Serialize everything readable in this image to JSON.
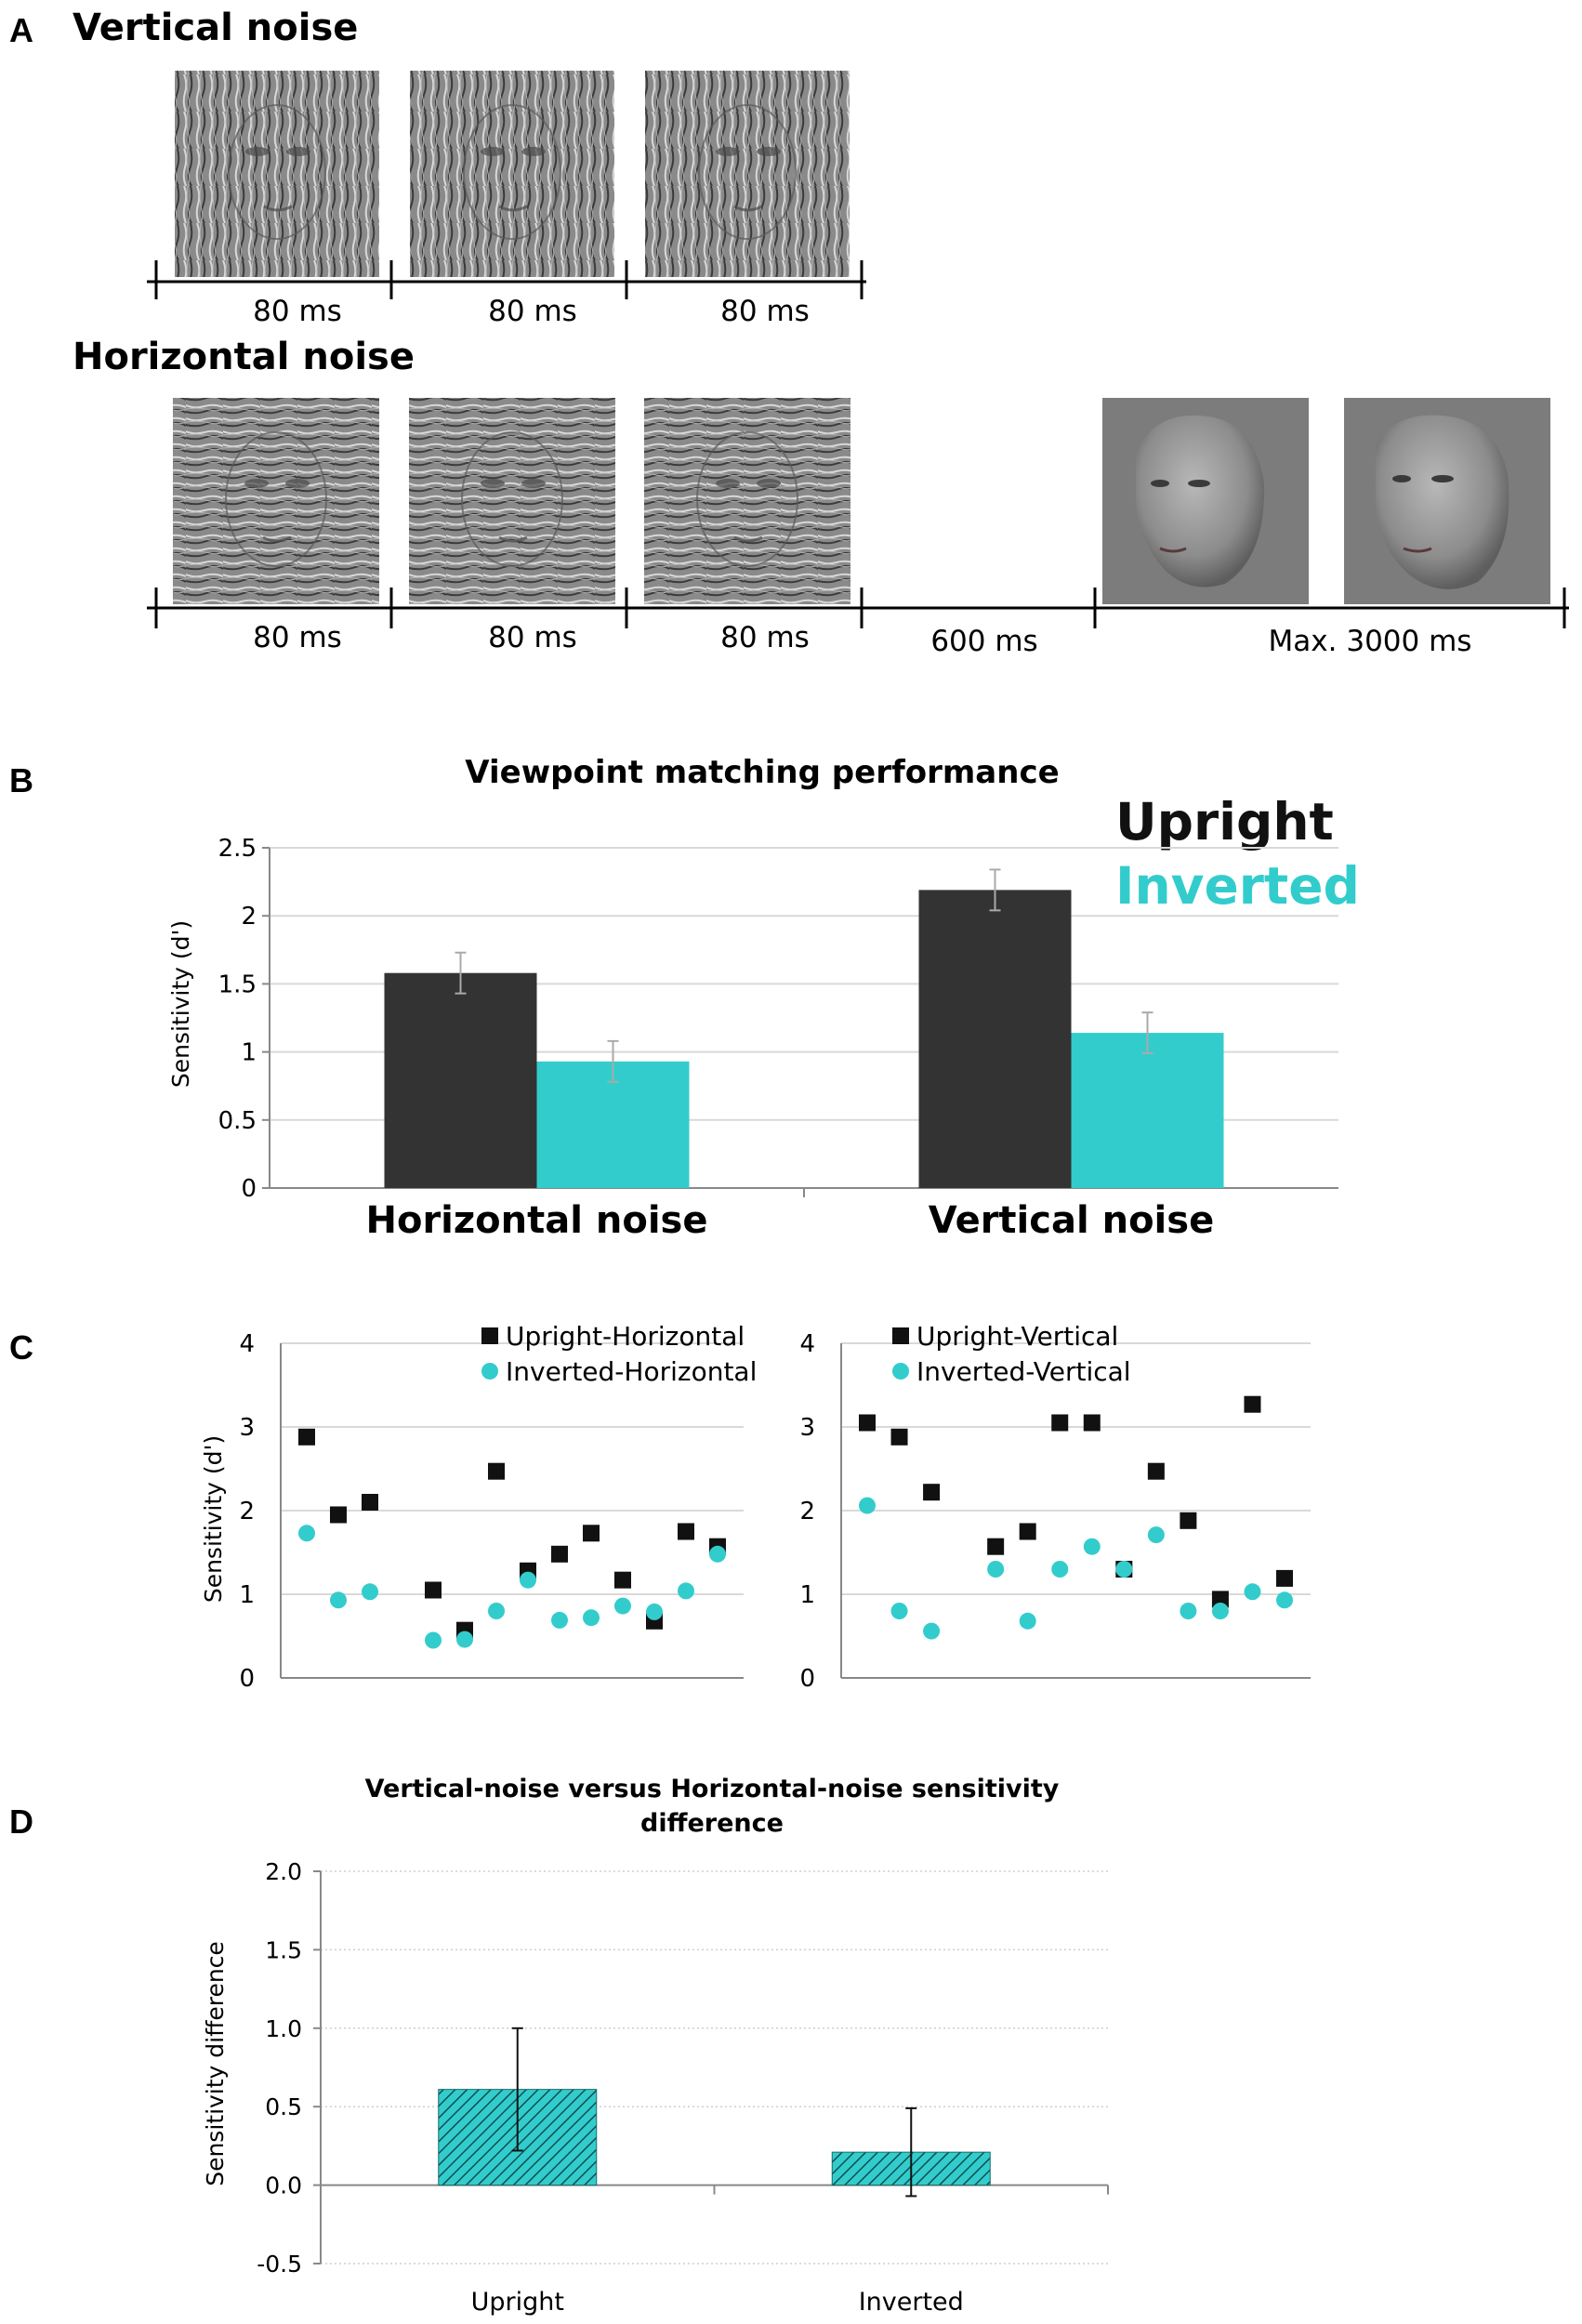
{
  "panel_labels": {
    "a": "A",
    "b": "B",
    "c": "C",
    "d": "D"
  },
  "colors": {
    "upright": "#333333",
    "inverted": "#33cccc",
    "axis": "#888888",
    "grid": "#d9d9d9",
    "ink": "#111111"
  },
  "panel_a": {
    "vertical_title": "Vertical noise",
    "horizontal_title": "Horizontal noise",
    "vertical_times": [
      "80 ms",
      "80 ms",
      "80 ms"
    ],
    "horizontal_times": [
      "80 ms",
      "80 ms",
      "80 ms",
      "600 ms",
      "Max. 3000 ms"
    ],
    "stimulus_icons": [
      "vertical-noise-face-image",
      "horizontal-noise-face-image",
      "rotated-face-photo"
    ]
  },
  "chart_data": [
    {
      "id": "B",
      "type": "bar",
      "title": "Viewpoint matching performance",
      "ylabel": "Sensitivity (d')",
      "xlabel": "",
      "ylim": [
        0,
        2.5
      ],
      "yticks": [
        "0",
        "0.5",
        "1",
        "1.5",
        "2",
        "2.5"
      ],
      "categories": [
        "Horizontal noise",
        "Vertical noise"
      ],
      "legend": [
        "Upright",
        "Inverted"
      ],
      "series": [
        {
          "name": "Upright",
          "color": "#333333",
          "values": [
            1.58,
            2.19
          ],
          "errors": [
            0.15,
            0.15
          ]
        },
        {
          "name": "Inverted",
          "color": "#33cccc",
          "values": [
            0.93,
            1.14
          ],
          "errors": [
            0.15,
            0.15
          ]
        }
      ]
    },
    {
      "id": "C-left",
      "type": "scatter",
      "ylabel": "Sensitivity (d')",
      "ylim": [
        0,
        4
      ],
      "yticks": [
        "0",
        "1",
        "2",
        "3",
        "4"
      ],
      "x": [
        1,
        2,
        3,
        4,
        5,
        6,
        7,
        8,
        9,
        10,
        11,
        12,
        13,
        14
      ],
      "series": [
        {
          "name": "Upright-Horizontal",
          "marker": "square",
          "color": "#111111",
          "values": [
            2.88,
            1.95,
            2.1,
            1.05,
            0.57,
            2.47,
            1.28,
            1.48,
            1.73,
            1.17,
            0.68,
            1.75,
            1.57
          ],
          "x": [
            1,
            2,
            3,
            5,
            6,
            7,
            8,
            9,
            10,
            11,
            12,
            13,
            14
          ]
        },
        {
          "name": "Inverted-Horizontal",
          "marker": "circle",
          "color": "#33cccc",
          "values": [
            1.73,
            0.93,
            1.03,
            0.45,
            0.46,
            0.8,
            1.17,
            0.69,
            0.72,
            0.86,
            0.79,
            1.04,
            1.48
          ],
          "x": [
            1,
            2,
            3,
            5,
            6,
            7,
            8,
            9,
            10,
            11,
            12,
            13,
            14
          ]
        }
      ]
    },
    {
      "id": "C-right",
      "type": "scatter",
      "ylabel": "",
      "ylim": [
        0,
        4
      ],
      "yticks": [
        "0",
        "1",
        "2",
        "3",
        "4"
      ],
      "x": [
        1,
        2,
        3,
        4,
        5,
        6,
        7,
        8,
        9,
        10,
        11,
        12,
        13,
        14
      ],
      "series": [
        {
          "name": "Upright-Vertical",
          "marker": "square",
          "color": "#111111",
          "values": [
            3.05,
            2.88,
            2.22,
            1.57,
            1.75,
            3.05,
            3.05,
            1.3,
            2.47,
            1.88,
            0.94,
            3.27,
            1.19
          ],
          "x": [
            1,
            2,
            3,
            5,
            6,
            7,
            8,
            9,
            10,
            11,
            12,
            13,
            14
          ]
        },
        {
          "name": "Inverted-Vertical",
          "marker": "circle",
          "color": "#33cccc",
          "values": [
            2.06,
            0.8,
            0.56,
            1.3,
            0.68,
            1.3,
            1.57,
            1.3,
            1.71,
            0.8,
            0.8,
            1.03,
            0.93
          ],
          "x": [
            1,
            2,
            3,
            5,
            6,
            7,
            8,
            9,
            10,
            11,
            12,
            13,
            14
          ]
        }
      ]
    },
    {
      "id": "D",
      "type": "bar",
      "title_lines": [
        "Vertical-noise versus Horizontal-noise sensitivity",
        "difference"
      ],
      "ylabel": "Sensitivity difference",
      "ylim": [
        -0.5,
        2.0
      ],
      "yticks": [
        "-0.5",
        "0.0",
        "0.5",
        "1.0",
        "1.5",
        "2.0"
      ],
      "categories": [
        "Upright",
        "Inverted"
      ],
      "values": [
        0.61,
        0.21
      ],
      "errors": [
        0.39,
        0.28
      ],
      "fill": "hatched-teal"
    }
  ]
}
